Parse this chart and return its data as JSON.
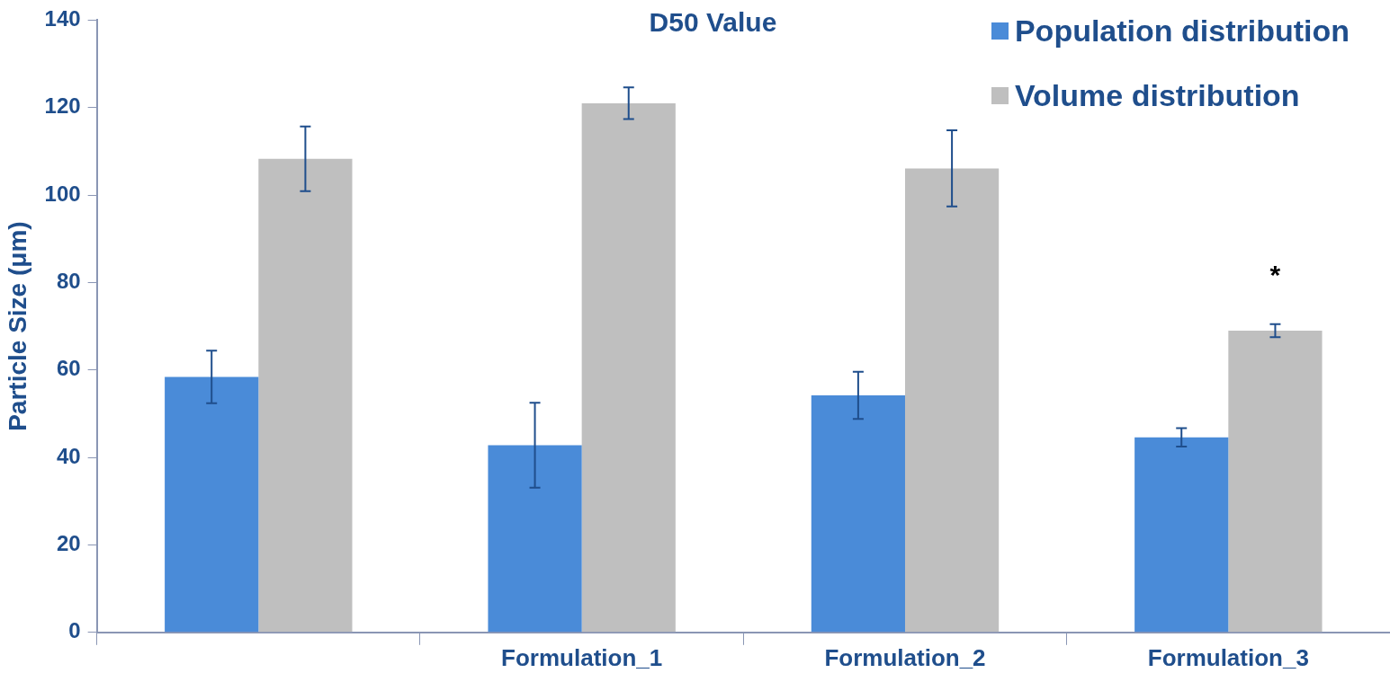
{
  "chart_data": {
    "type": "bar",
    "title": "D50 Value",
    "ylabel": "Particle Size (μm)",
    "categories": [
      null,
      "Formulation_1",
      "Formulation_2",
      "Formulation_3"
    ],
    "series": [
      {
        "name": "Population distribution",
        "color": "#4a8bd8",
        "values": [
          58.4,
          42.8,
          54.2,
          44.6
        ],
        "errors": [
          6,
          9.7,
          5.4,
          2.1
        ]
      },
      {
        "name": "Volume distribution",
        "color": "#bfbfbf",
        "values": [
          108.3,
          121.0,
          106.1,
          69.0
        ],
        "errors": [
          7.4,
          3.6,
          8.7,
          1.5
        ]
      }
    ],
    "ylim": [
      0,
      140
    ],
    "yticks": [
      0,
      20,
      40,
      60,
      80,
      100,
      120,
      140
    ],
    "grid": false,
    "legend": "top right",
    "annotations": [
      "*"
    ]
  }
}
